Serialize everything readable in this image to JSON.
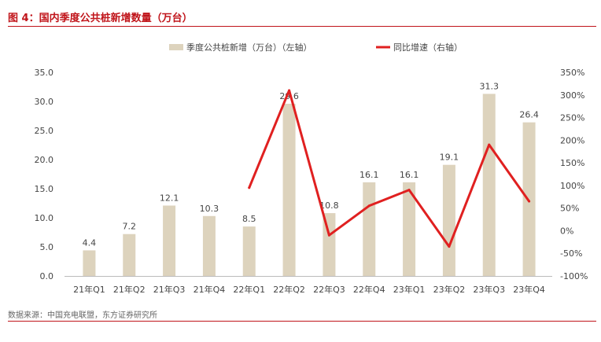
{
  "figure": {
    "title": "图 4：国内季度公共桩新增数量（万台）",
    "source": "数据来源：中国充电联盟，东方证券研究所"
  },
  "colors": {
    "accent": "#c0141a",
    "bar": "#ddd3bd",
    "line": "#e02020",
    "text": "#444444"
  },
  "chart_data": {
    "type": "bar",
    "categories": [
      "21年Q1",
      "21年Q2",
      "21年Q3",
      "21年Q4",
      "22年Q1",
      "22年Q2",
      "22年Q3",
      "22年Q4",
      "23年Q1",
      "23年Q2",
      "23年Q3",
      "23年Q4"
    ],
    "series": [
      {
        "name": "季度公共桩新增（万台）（左轴）",
        "type": "bar",
        "axis": "left",
        "values": [
          4.4,
          7.2,
          12.1,
          10.3,
          8.5,
          29.6,
          10.8,
          16.1,
          16.1,
          19.1,
          31.3,
          26.4
        ],
        "labels": [
          "4.4",
          "7.2",
          "12.1",
          "10.3",
          "8.5",
          "29.6",
          "10.8",
          "16.1",
          "16.1",
          "19.1",
          "31.3",
          "26.4"
        ]
      },
      {
        "name": "同比增速（右轴）",
        "type": "line",
        "axis": "right",
        "values": [
          null,
          null,
          null,
          null,
          95,
          310,
          -10,
          55,
          90,
          -35,
          190,
          65
        ]
      }
    ],
    "y_left": {
      "min": 0,
      "max": 35,
      "ticks": [
        "0.0",
        "5.0",
        "10.0",
        "15.0",
        "20.0",
        "25.0",
        "30.0",
        "35.0"
      ]
    },
    "y_right": {
      "min": -100,
      "max": 350,
      "ticks": [
        "-100%",
        "-50%",
        "0%",
        "50%",
        "100%",
        "150%",
        "200%",
        "250%",
        "300%",
        "350%"
      ]
    },
    "legend_position": "top-center",
    "grid": false
  }
}
